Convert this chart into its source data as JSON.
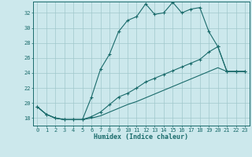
{
  "title": "",
  "xlabel": "Humidex (Indice chaleur)",
  "background_color": "#cce8ec",
  "grid_color": "#a0c8cc",
  "line_color": "#1a6b6b",
  "xlim": [
    -0.5,
    23.5
  ],
  "ylim": [
    17,
    33.5
  ],
  "yticks": [
    18,
    20,
    22,
    24,
    26,
    28,
    30,
    32
  ],
  "xticks": [
    0,
    1,
    2,
    3,
    4,
    5,
    6,
    7,
    8,
    9,
    10,
    11,
    12,
    13,
    14,
    15,
    16,
    17,
    18,
    19,
    20,
    21,
    22,
    23
  ],
  "series1_x": [
    0,
    1,
    2,
    3,
    4,
    5,
    6,
    7,
    8,
    9,
    10,
    11,
    12,
    13,
    14,
    15,
    16,
    17,
    18,
    19,
    20,
    21,
    22,
    23
  ],
  "series1_y": [
    19.5,
    18.5,
    18.0,
    17.8,
    17.8,
    17.8,
    20.8,
    24.5,
    26.5,
    29.5,
    31.0,
    31.5,
    33.2,
    31.8,
    32.0,
    33.4,
    32.0,
    32.5,
    32.7,
    29.5,
    27.5,
    24.2,
    24.2,
    24.2
  ],
  "series2_x": [
    0,
    1,
    2,
    3,
    4,
    5,
    6,
    7,
    8,
    9,
    10,
    11,
    12,
    13,
    14,
    15,
    16,
    17,
    18,
    19,
    20,
    21,
    22,
    23
  ],
  "series2_y": [
    19.5,
    18.5,
    18.0,
    17.8,
    17.8,
    17.8,
    18.2,
    18.8,
    19.8,
    20.8,
    21.3,
    22.0,
    22.8,
    23.3,
    23.8,
    24.3,
    24.8,
    25.3,
    25.8,
    26.8,
    27.5,
    24.2,
    24.2,
    24.2
  ],
  "series3_x": [
    0,
    1,
    2,
    3,
    4,
    5,
    6,
    7,
    8,
    9,
    10,
    11,
    12,
    13,
    14,
    15,
    16,
    17,
    18,
    19,
    20,
    21,
    22,
    23
  ],
  "series3_y": [
    19.5,
    18.5,
    18.0,
    17.8,
    17.8,
    17.8,
    18.0,
    18.3,
    18.8,
    19.3,
    19.8,
    20.2,
    20.7,
    21.2,
    21.7,
    22.2,
    22.7,
    23.2,
    23.7,
    24.2,
    24.7,
    24.2,
    24.2,
    24.2
  ]
}
